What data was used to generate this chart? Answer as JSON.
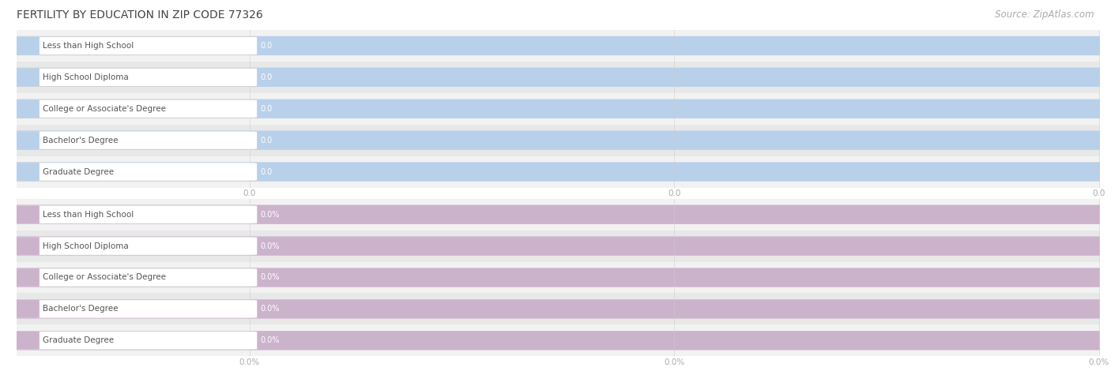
{
  "title": "FERTILITY BY EDUCATION IN ZIP CODE 77326",
  "source": "Source: ZipAtlas.com",
  "categories": [
    "Less than High School",
    "High School Diploma",
    "College or Associate's Degree",
    "Bachelor's Degree",
    "Graduate Degree"
  ],
  "top_values": [
    0.0,
    0.0,
    0.0,
    0.0,
    0.0
  ],
  "bottom_values": [
    0.0,
    0.0,
    0.0,
    0.0,
    0.0
  ],
  "top_label_suffix": "",
  "bottom_label_suffix": "%",
  "top_bar_color": "#b8d0ea",
  "bottom_bar_color": "#ccb3cc",
  "background_color": "#ffffff",
  "row_odd_color": "#f2f2f2",
  "row_even_color": "#e8e8e8",
  "label_bg_color": "#ffffff",
  "label_border_color": "#cccccc",
  "title_color": "#444444",
  "source_color": "#aaaaaa",
  "label_text_color": "#555555",
  "value_text_color": "#999999",
  "axis_tick_color": "#aaaaaa",
  "title_fontsize": 10,
  "source_fontsize": 8.5,
  "label_fontsize": 7.5,
  "value_fontsize": 7,
  "tick_fontsize": 7.5,
  "grid_color": "#cccccc"
}
